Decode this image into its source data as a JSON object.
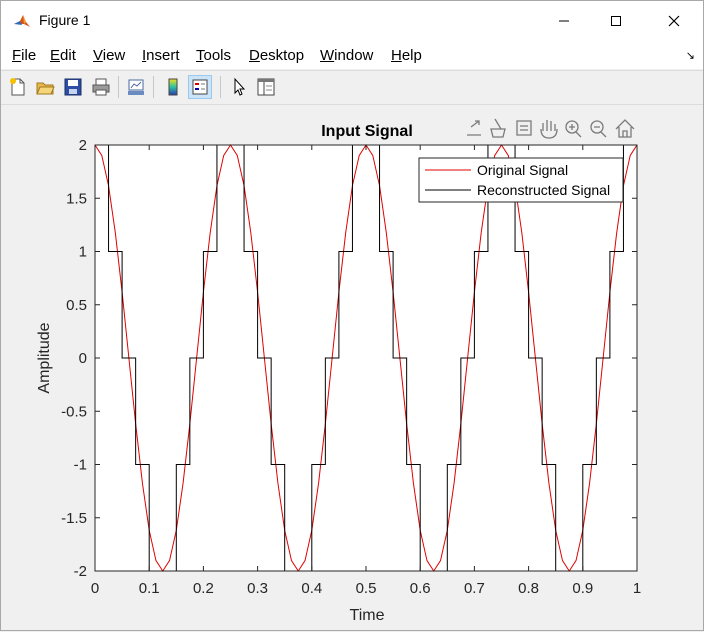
{
  "window": {
    "title": "Figure 1",
    "minimize_glyph": "—",
    "close_glyph": "✕"
  },
  "menu": {
    "items": [
      {
        "key": "F",
        "rest": "ile"
      },
      {
        "key": "E",
        "rest": "dit"
      },
      {
        "key": "V",
        "rest": "iew"
      },
      {
        "key": "I",
        "rest": "nsert"
      },
      {
        "key": "T",
        "rest": "ools"
      },
      {
        "key": "D",
        "rest": "esktop"
      },
      {
        "key": "W",
        "rest": "indow"
      },
      {
        "key": "H",
        "rest": "elp"
      }
    ],
    "dock_glyph": "↘"
  },
  "toolbar": {
    "icons": [
      "new-figure-icon",
      "open-file-icon",
      "save-icon",
      "print-icon",
      "link-plot-icon",
      "insert-colorbar-icon",
      "insert-legend-icon",
      "edit-plot-arrow-icon",
      "property-inspector-icon"
    ]
  },
  "axes_toolbar": {
    "icons": [
      "export-icon",
      "brush-icon",
      "data-tips-icon",
      "pan-hand-icon",
      "zoom-in-icon",
      "zoom-out-icon",
      "home-icon"
    ]
  },
  "colors": {
    "original": "#e00000",
    "reconstructed": "#000000",
    "matlab_logo": "#d95319"
  },
  "chart_data": {
    "type": "line",
    "title": "Input Signal",
    "xlabel": "Time",
    "ylabel": "Amplitude",
    "xlim": [
      0,
      1
    ],
    "ylim": [
      -2,
      2
    ],
    "xticks": [
      "0",
      "0.1",
      "0.2",
      "0.3",
      "0.4",
      "0.5",
      "0.6",
      "0.7",
      "0.8",
      "0.9",
      "1"
    ],
    "yticks": [
      "-2",
      "-1.5",
      "-1",
      "-0.5",
      "0",
      "0.5",
      "1",
      "1.5",
      "2"
    ],
    "grid": false,
    "legend_position": "top-right",
    "series": [
      {
        "name": "Original Signal",
        "description": "2*cos(2*pi*4*t)",
        "x": [
          0,
          0.0125,
          0.025,
          0.0375,
          0.05,
          0.0625,
          0.075,
          0.0875,
          0.1,
          0.1125,
          0.125,
          0.1375,
          0.15,
          0.1625,
          0.175,
          0.1875,
          0.2,
          0.2125,
          0.225,
          0.2375,
          0.25,
          0.2625,
          0.275,
          0.2875,
          0.3,
          0.3125,
          0.325,
          0.3375,
          0.35,
          0.3625,
          0.375,
          0.3875,
          0.4,
          0.4125,
          0.425,
          0.4375,
          0.45,
          0.4625,
          0.475,
          0.4875,
          0.5,
          0.5125,
          0.525,
          0.5375,
          0.55,
          0.5625,
          0.575,
          0.5875,
          0.6,
          0.6125,
          0.625,
          0.6375,
          0.65,
          0.6625,
          0.675,
          0.6875,
          0.7,
          0.7125,
          0.725,
          0.7375,
          0.75,
          0.7625,
          0.775,
          0.7875,
          0.8,
          0.8125,
          0.825,
          0.8375,
          0.85,
          0.8625,
          0.875,
          0.8875,
          0.9,
          0.9125,
          0.925,
          0.9375,
          0.95,
          0.9625,
          0.975,
          0.9875,
          1
        ],
        "y": [
          2,
          1.902,
          1.618,
          1.176,
          0.618,
          0,
          -0.618,
          -1.176,
          -1.618,
          -1.902,
          -2,
          -1.902,
          -1.618,
          -1.176,
          -0.618,
          0,
          0.618,
          1.176,
          1.618,
          1.902,
          2,
          1.902,
          1.618,
          1.176,
          0.618,
          0,
          -0.618,
          -1.176,
          -1.618,
          -1.902,
          -2,
          -1.902,
          -1.618,
          -1.176,
          -0.618,
          0,
          0.618,
          1.176,
          1.618,
          1.902,
          2,
          1.902,
          1.618,
          1.176,
          0.618,
          0,
          -0.618,
          -1.176,
          -1.618,
          -1.902,
          -2,
          -1.902,
          -1.618,
          -1.176,
          -0.618,
          0,
          0.618,
          1.176,
          1.618,
          1.902,
          2,
          1.902,
          1.618,
          1.176,
          0.618,
          0,
          -0.618,
          -1.176,
          -1.618,
          -1.902,
          -2,
          -1.902,
          -1.618,
          -1.176,
          -0.618,
          0,
          0.618,
          1.176,
          1.618,
          1.902,
          2
        ]
      },
      {
        "name": "Reconstructed Signal",
        "description": "staircase: quantized to integers",
        "x": [
          0,
          0.025,
          0.025,
          0.05,
          0.05,
          0.075,
          0.075,
          0.1,
          0.1,
          0.15,
          0.15,
          0.175,
          0.175,
          0.2,
          0.2,
          0.225,
          0.225,
          0.275,
          0.275,
          0.3,
          0.3,
          0.325,
          0.325,
          0.35,
          0.35,
          0.4,
          0.4,
          0.425,
          0.425,
          0.45,
          0.45,
          0.475,
          0.475,
          0.525,
          0.525,
          0.55,
          0.55,
          0.575,
          0.575,
          0.6,
          0.6,
          0.65,
          0.65,
          0.675,
          0.675,
          0.7,
          0.7,
          0.725,
          0.725,
          0.775,
          0.775,
          0.8,
          0.8,
          0.825,
          0.825,
          0.85,
          0.85,
          0.9,
          0.9,
          0.925,
          0.925,
          0.95,
          0.95,
          0.975,
          0.975,
          1
        ],
        "y": [
          2,
          2,
          1,
          1,
          0,
          0,
          -1,
          -1,
          -2,
          -2,
          -1,
          -1,
          0,
          0,
          1,
          1,
          2,
          2,
          1,
          1,
          0,
          0,
          -1,
          -1,
          -2,
          -2,
          -1,
          -1,
          0,
          0,
          1,
          1,
          2,
          2,
          1,
          1,
          0,
          0,
          -1,
          -1,
          -2,
          -2,
          -1,
          -1,
          0,
          0,
          1,
          1,
          2,
          2,
          1,
          1,
          0,
          0,
          -1,
          -1,
          -2,
          -2,
          -1,
          -1,
          0,
          0,
          1,
          1,
          2,
          2
        ]
      }
    ]
  }
}
